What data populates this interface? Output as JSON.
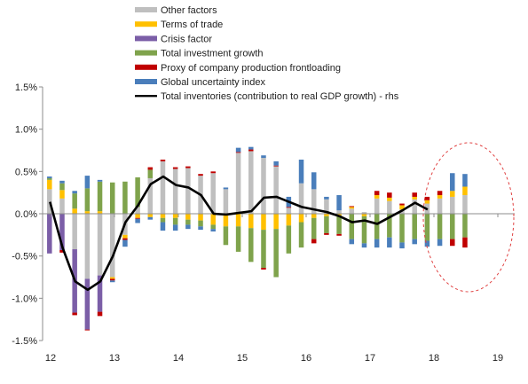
{
  "chart_data": {
    "type": "bar",
    "subtype": "stacked bar with line overlay",
    "title": "",
    "xlabel": "",
    "ylabel": "",
    "ylim": [
      -1.5,
      1.5
    ],
    "y_ticks": [
      -1.5,
      -1.0,
      -0.5,
      0.0,
      0.5,
      1.0,
      1.5
    ],
    "y_tick_labels": [
      "-1.5%",
      "-1.0%",
      "-0.5%",
      "0.0%",
      "0.5%",
      "1.0%",
      "1.5%"
    ],
    "x_tick_labels": [
      "12",
      "13",
      "14",
      "15",
      "16",
      "17",
      "18",
      "19"
    ],
    "grid": false,
    "legend_position": "top",
    "annotation": "dashed red ellipse highlighting 2018-2019",
    "series": [
      {
        "name": "Other factors",
        "color": "#BFBFBF",
        "values": [
          0.29,
          0.18,
          -0.42,
          -0.77,
          -0.73,
          -0.75,
          -0.25,
          0.08,
          0.42,
          0.62,
          0.53,
          0.54,
          0.45,
          0.48,
          0.29,
          0.72,
          0.74,
          0.66,
          0.56,
          0.07,
          0.36,
          0.29,
          0.17,
          0.04,
          0.06,
          0.02,
          0.18,
          0.15,
          0.05,
          0.17,
          0.12,
          0.18,
          0.2,
          0.22
        ]
      },
      {
        "name": "Terms of trade",
        "color": "#FFC000",
        "values": [
          0.11,
          0.1,
          0.06,
          0.03,
          0.03,
          -0.02,
          -0.04,
          -0.05,
          -0.04,
          -0.05,
          -0.05,
          -0.07,
          -0.08,
          -0.13,
          -0.15,
          -0.15,
          -0.17,
          -0.19,
          -0.18,
          -0.14,
          -0.1,
          -0.05,
          -0.03,
          -0.02,
          0.02,
          -0.03,
          0.04,
          0.04,
          0.05,
          0.03,
          0.04,
          0.04,
          0.07,
          0.1
        ]
      },
      {
        "name": "Crisis factor",
        "color": "#7B5EA7",
        "values": [
          -0.47,
          -0.43,
          -0.75,
          -0.6,
          -0.43,
          0.0,
          0.0,
          0.0,
          0.0,
          0.0,
          0.0,
          0.0,
          0.0,
          0.0,
          0.0,
          0.0,
          0.0,
          0.0,
          0.0,
          0.0,
          0.0,
          0.0,
          0.0,
          0.0,
          0.0,
          0.0,
          0.0,
          0.0,
          0.0,
          0.0,
          0.0,
          0.0,
          0.0,
          0.0
        ]
      },
      {
        "name": "Total investment growth",
        "color": "#7FA34C",
        "values": [
          0.02,
          0.08,
          0.18,
          0.27,
          0.35,
          0.37,
          0.38,
          0.35,
          0.1,
          -0.05,
          -0.08,
          -0.06,
          -0.07,
          -0.05,
          -0.22,
          -0.3,
          -0.4,
          -0.45,
          -0.57,
          -0.33,
          -0.3,
          -0.25,
          -0.2,
          -0.22,
          -0.3,
          -0.32,
          -0.3,
          -0.28,
          -0.34,
          -0.3,
          -0.32,
          -0.3,
          -0.3,
          -0.28
        ]
      },
      {
        "name": "Proxy of company production frontloading",
        "color": "#C00000",
        "values": [
          0.0,
          -0.03,
          -0.03,
          -0.01,
          -0.05,
          -0.02,
          -0.02,
          -0.01,
          0.03,
          0.02,
          0.02,
          0.02,
          0.02,
          0.02,
          0.0,
          0.01,
          0.02,
          -0.02,
          0.01,
          0.01,
          0.0,
          -0.05,
          -0.02,
          -0.02,
          0.01,
          0.0,
          0.05,
          0.06,
          0.02,
          0.05,
          0.04,
          0.05,
          -0.08,
          -0.12
        ]
      },
      {
        "name": "Global uncertainty index",
        "color": "#4A7EBB",
        "values": [
          0.02,
          0.03,
          0.03,
          0.15,
          0.02,
          -0.02,
          -0.08,
          -0.05,
          -0.03,
          -0.1,
          -0.07,
          -0.05,
          -0.04,
          -0.03,
          0.02,
          0.05,
          0.03,
          0.03,
          0.05,
          0.12,
          0.28,
          0.2,
          0.03,
          0.18,
          -0.06,
          -0.05,
          -0.1,
          -0.12,
          -0.07,
          -0.06,
          -0.07,
          -0.08,
          0.21,
          0.15
        ]
      },
      {
        "name": "Total inventories (contribution to real GDP growth) - rhs",
        "color": "#000000",
        "values": [
          0.14,
          -0.4,
          -0.8,
          -0.9,
          -0.8,
          -0.5,
          -0.1,
          0.1,
          0.35,
          0.44,
          0.34,
          0.31,
          0.22,
          0.0,
          -0.01,
          0.01,
          0.03,
          0.19,
          0.2,
          0.14,
          0.08,
          0.05,
          0.02,
          -0.03,
          -0.1,
          -0.08,
          -0.12,
          -0.04,
          0.04,
          0.13,
          0.05
        ]
      }
    ]
  }
}
